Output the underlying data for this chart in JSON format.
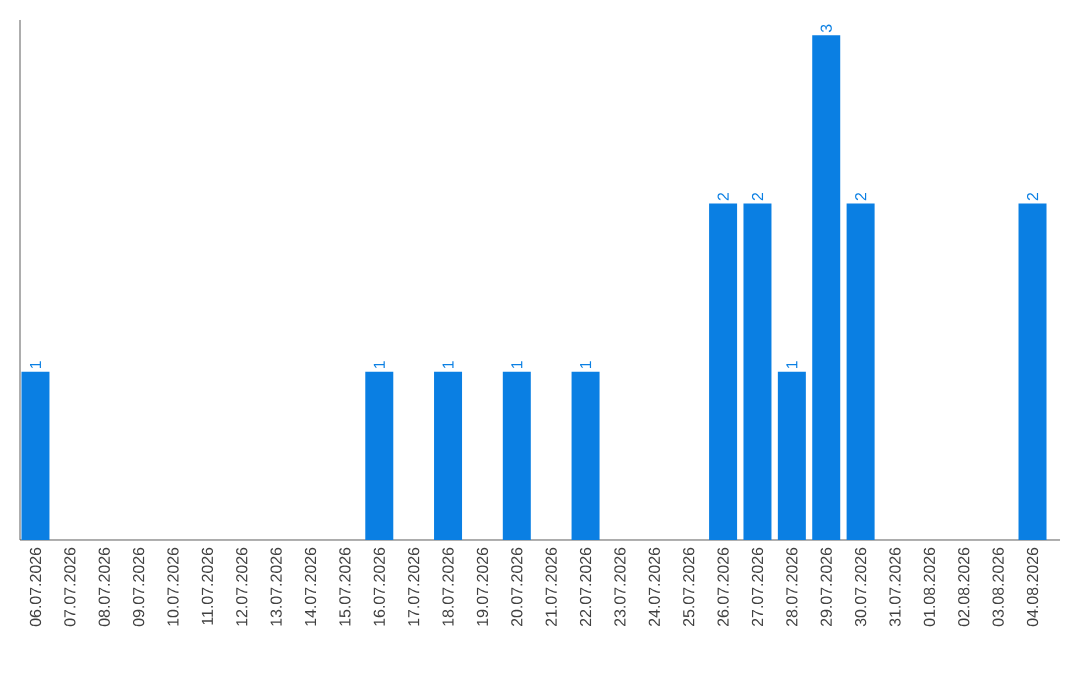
{
  "chart_data": {
    "type": "bar",
    "categories": [
      "06.07.2026",
      "07.07.2026",
      "08.07.2026",
      "09.07.2026",
      "10.07.2026",
      "11.07.2026",
      "12.07.2026",
      "13.07.2026",
      "14.07.2026",
      "15.07.2026",
      "16.07.2026",
      "17.07.2026",
      "18.07.2026",
      "19.07.2026",
      "20.07.2026",
      "21.07.2026",
      "22.07.2026",
      "23.07.2026",
      "24.07.2026",
      "25.07.2026",
      "26.07.2026",
      "27.07.2026",
      "28.07.2026",
      "29.07.2026",
      "30.07.2026",
      "31.07.2026",
      "01.08.2026",
      "02.08.2026",
      "03.08.2026",
      "04.08.2026"
    ],
    "values": [
      1,
      0,
      0,
      0,
      0,
      0,
      0,
      0,
      0,
      0,
      1,
      0,
      1,
      0,
      1,
      0,
      1,
      0,
      0,
      0,
      2,
      2,
      1,
      3,
      2,
      0,
      0,
      0,
      0,
      2
    ],
    "value_labels": [
      "1",
      null,
      null,
      null,
      null,
      null,
      null,
      null,
      null,
      null,
      "1",
      null,
      "1",
      null,
      "1",
      null,
      "1",
      null,
      null,
      null,
      "2",
      "2",
      "1",
      "3",
      "2",
      null,
      null,
      null,
      null,
      "2"
    ],
    "color": "#0a7fe3"
  }
}
